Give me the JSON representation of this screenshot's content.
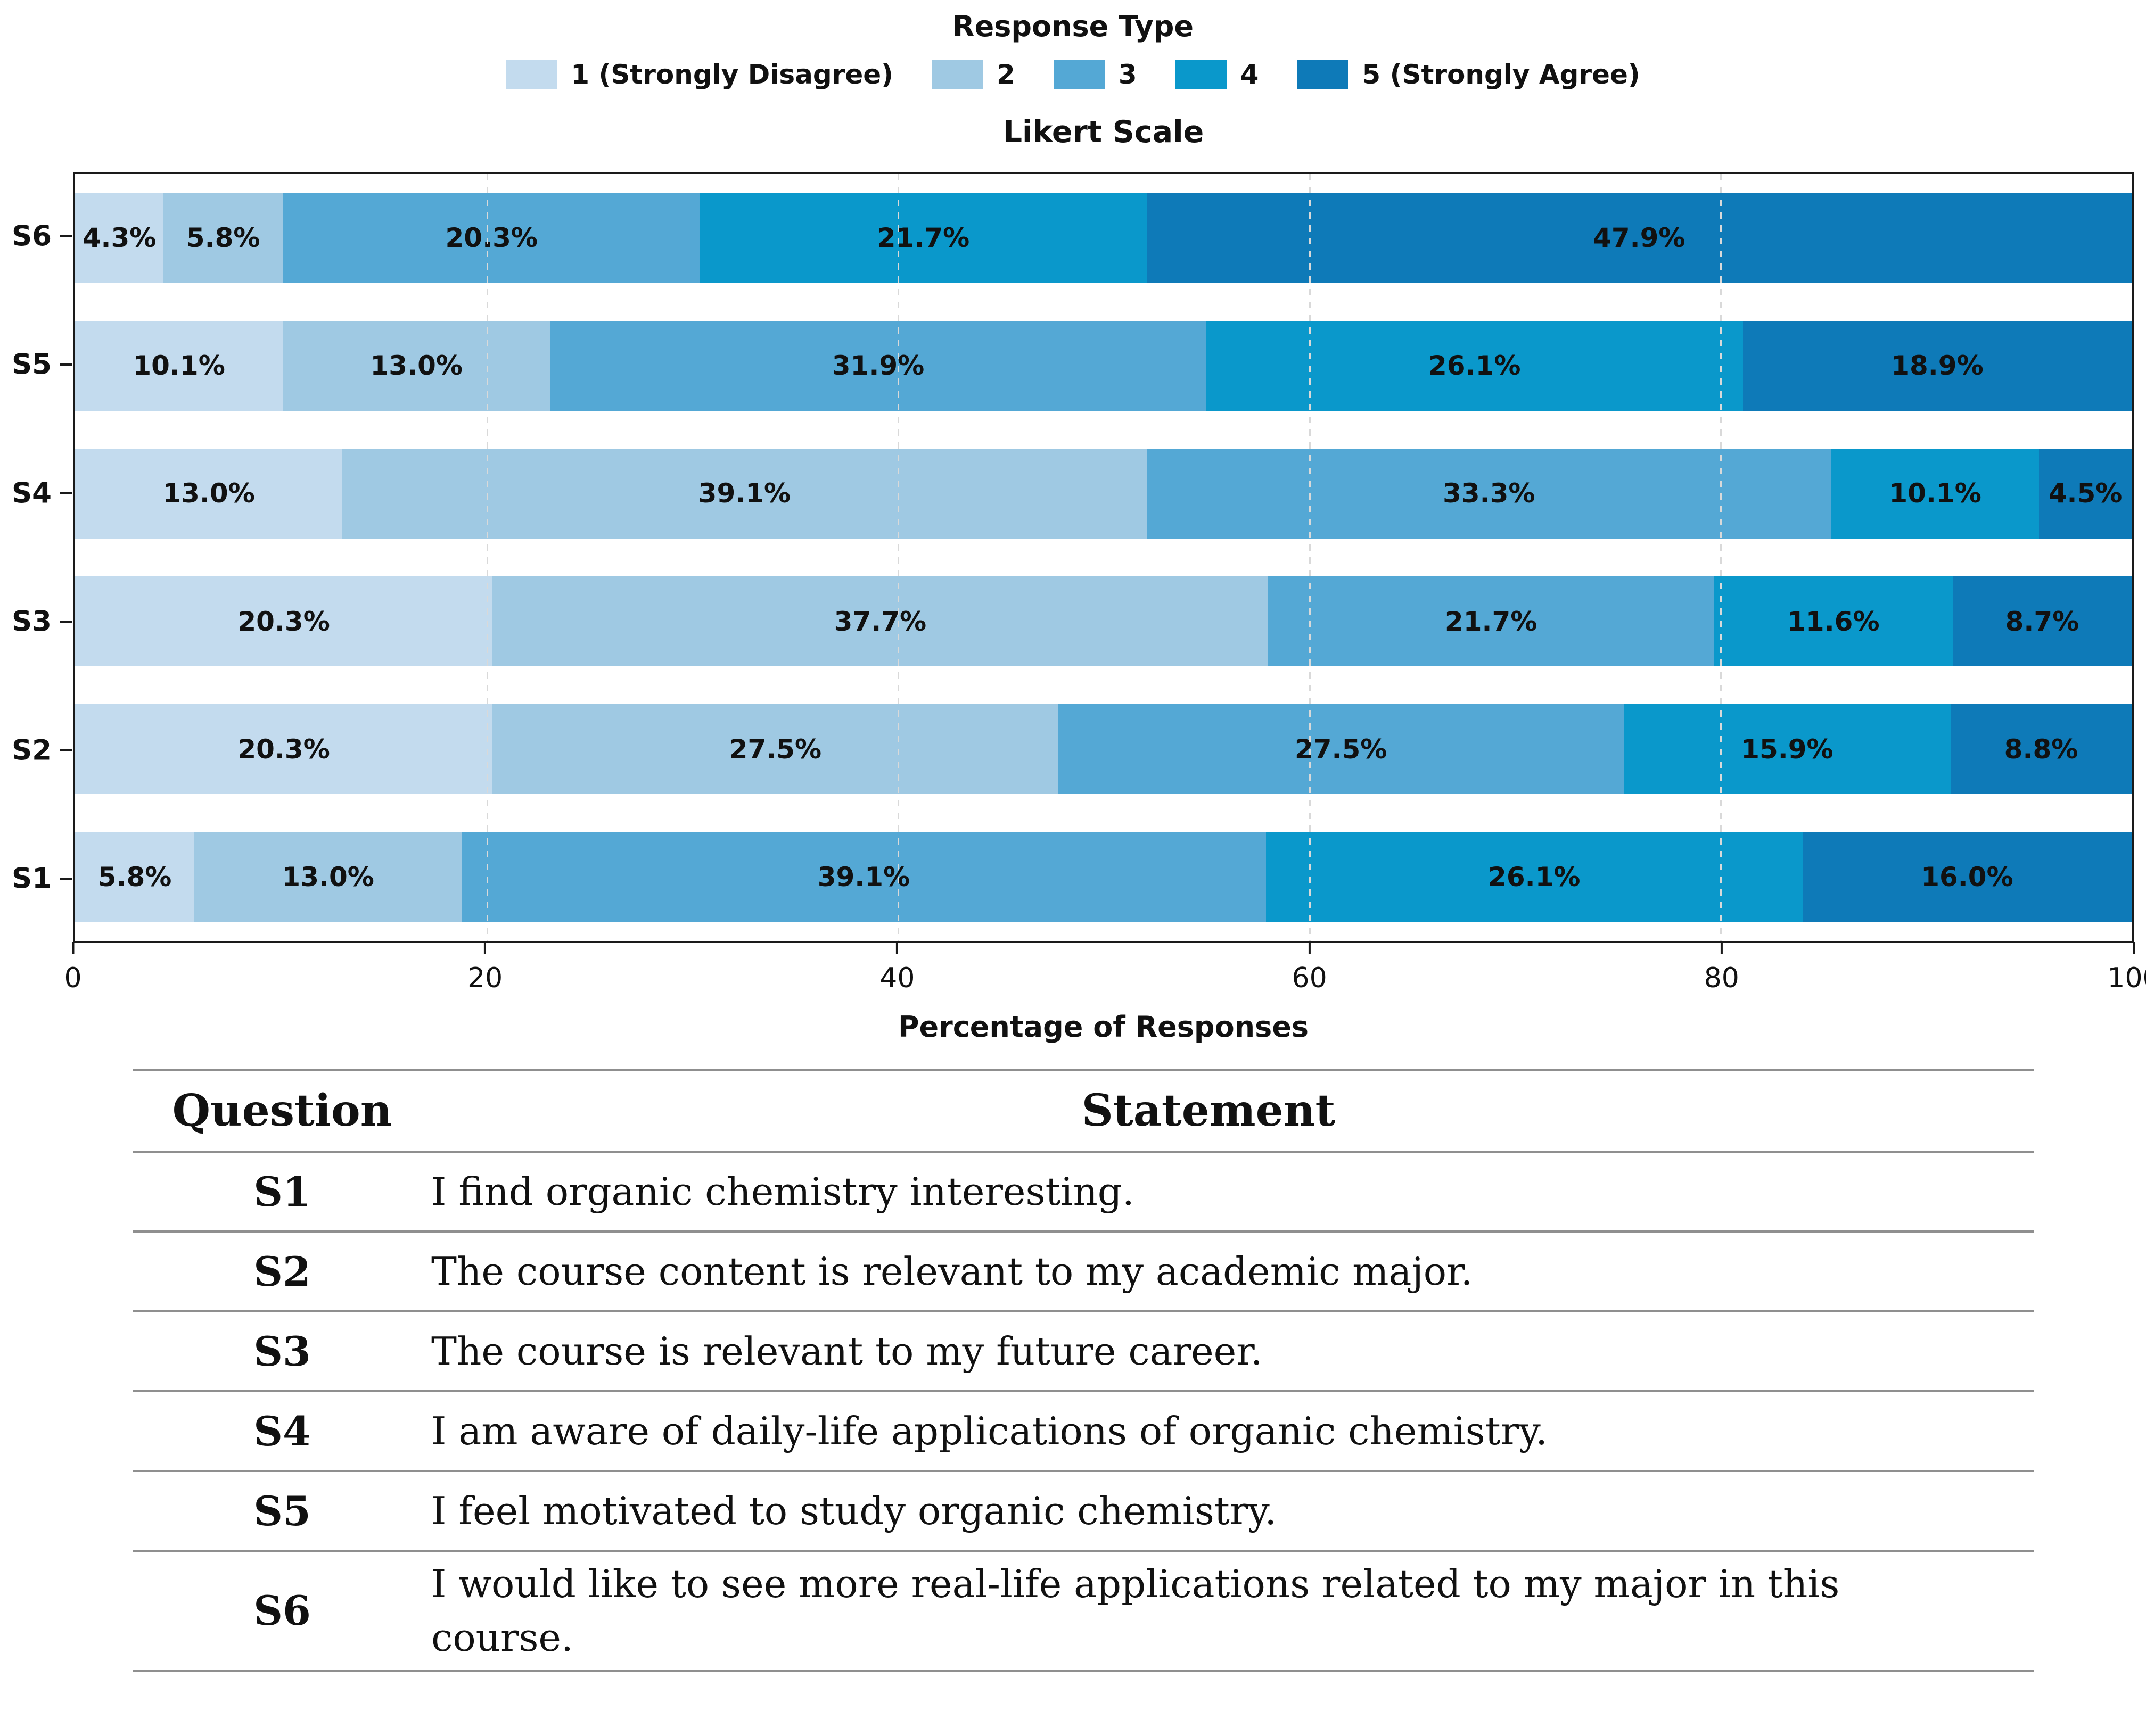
{
  "legend": {
    "title": "Response Type",
    "items": [
      {
        "label": "1 (Strongly Disagree)",
        "color": "#c3dbee"
      },
      {
        "label": "2",
        "color": "#9fc9e3"
      },
      {
        "label": "3",
        "color": "#54a8d5"
      },
      {
        "label": "4",
        "color": "#0a98cb"
      },
      {
        "label": "5 (Strongly Agree)",
        "color": "#0e7ab8"
      }
    ]
  },
  "chart_data": {
    "type": "bar",
    "stacked": true,
    "orientation": "horizontal",
    "title": "Likert Scale",
    "xlabel": "Percentage of Responses",
    "ylabel": "",
    "xlim": [
      0,
      100
    ],
    "xticks": [
      0,
      20,
      40,
      60,
      80,
      100
    ],
    "grid": "vertical-dashed",
    "legend_position": "top-center",
    "row_order_top_to_bottom": [
      "S6",
      "S5",
      "S4",
      "S3",
      "S2",
      "S1"
    ],
    "categories": [
      "S1",
      "S2",
      "S3",
      "S4",
      "S5",
      "S6"
    ],
    "series": [
      {
        "name": "1 (Strongly Disagree)",
        "color": "#c3dbee",
        "values": [
          5.8,
          20.3,
          20.3,
          13.0,
          10.1,
          4.3
        ]
      },
      {
        "name": "2",
        "color": "#9fc9e3",
        "values": [
          13.0,
          27.5,
          37.7,
          39.1,
          13.0,
          5.8
        ]
      },
      {
        "name": "3",
        "color": "#54a8d5",
        "values": [
          39.1,
          27.5,
          21.7,
          33.3,
          31.9,
          20.3
        ]
      },
      {
        "name": "4",
        "color": "#0a98cb",
        "values": [
          26.1,
          15.9,
          11.6,
          10.1,
          26.1,
          21.7
        ]
      },
      {
        "name": "5 (Strongly Agree)",
        "color": "#0e7ab8",
        "values": [
          16.0,
          8.8,
          8.7,
          4.5,
          18.9,
          47.9
        ]
      }
    ],
    "bar_label_format": "{value:.1f}%"
  },
  "table": {
    "headers": [
      "Question",
      "Statement"
    ],
    "rows": [
      {
        "question": "S1",
        "statement": "I find organic chemistry interesting."
      },
      {
        "question": "S2",
        "statement": "The course content is relevant to my academic major."
      },
      {
        "question": "S3",
        "statement": "The course is relevant to my future career."
      },
      {
        "question": "S4",
        "statement": "I am aware of daily-life applications of organic chemistry."
      },
      {
        "question": "S5",
        "statement": "I feel motivated to study organic chemistry."
      },
      {
        "question": "S6",
        "statement": "I would like to see more real-life applications related to my major in this course."
      }
    ]
  }
}
